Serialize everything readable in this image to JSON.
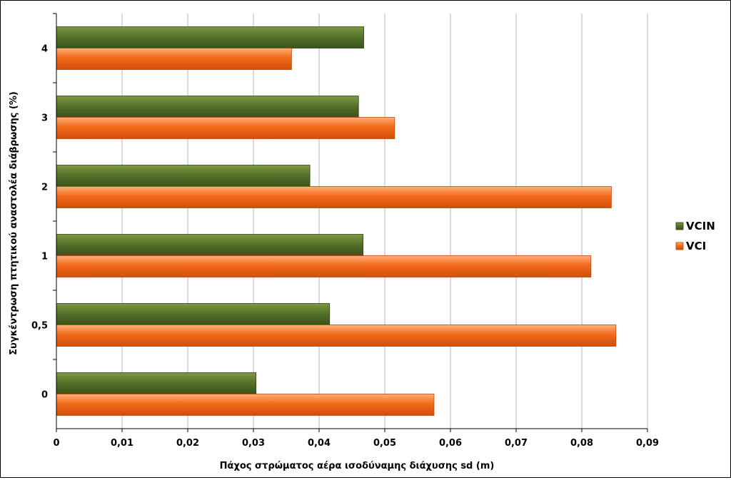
{
  "chart_data": {
    "type": "bar",
    "orientation": "horizontal",
    "categories": [
      "0",
      "0,5",
      "1",
      "2",
      "3",
      "4"
    ],
    "series": [
      {
        "name": "VCIN",
        "color": "#4f6b22",
        "values": [
          0.0304,
          0.0416,
          0.0467,
          0.0386,
          0.046,
          0.0468
        ]
      },
      {
        "name": "VCI",
        "color": "#f26a1b",
        "values": [
          0.0575,
          0.0852,
          0.0814,
          0.0845,
          0.0515,
          0.0358
        ]
      }
    ],
    "xlabel": "Πάχος στρώματος αέρα ισοδύναμης διάχυσης sd (m)",
    "ylabel": "Συγκέντρωση πτητικού αναστολέα διάβρωσης (%)",
    "xlim": [
      0,
      0.09
    ],
    "xticks": [
      "0",
      "0,01",
      "0,02",
      "0,03",
      "0,04",
      "0,05",
      "0,06",
      "0,07",
      "0,08",
      "0,09"
    ],
    "grid": "vertical",
    "legend_position": "right",
    "legend": [
      {
        "name": "VCIN",
        "color": "#4f6b22"
      },
      {
        "name": "VCI",
        "color": "#f26a1b"
      }
    ]
  }
}
